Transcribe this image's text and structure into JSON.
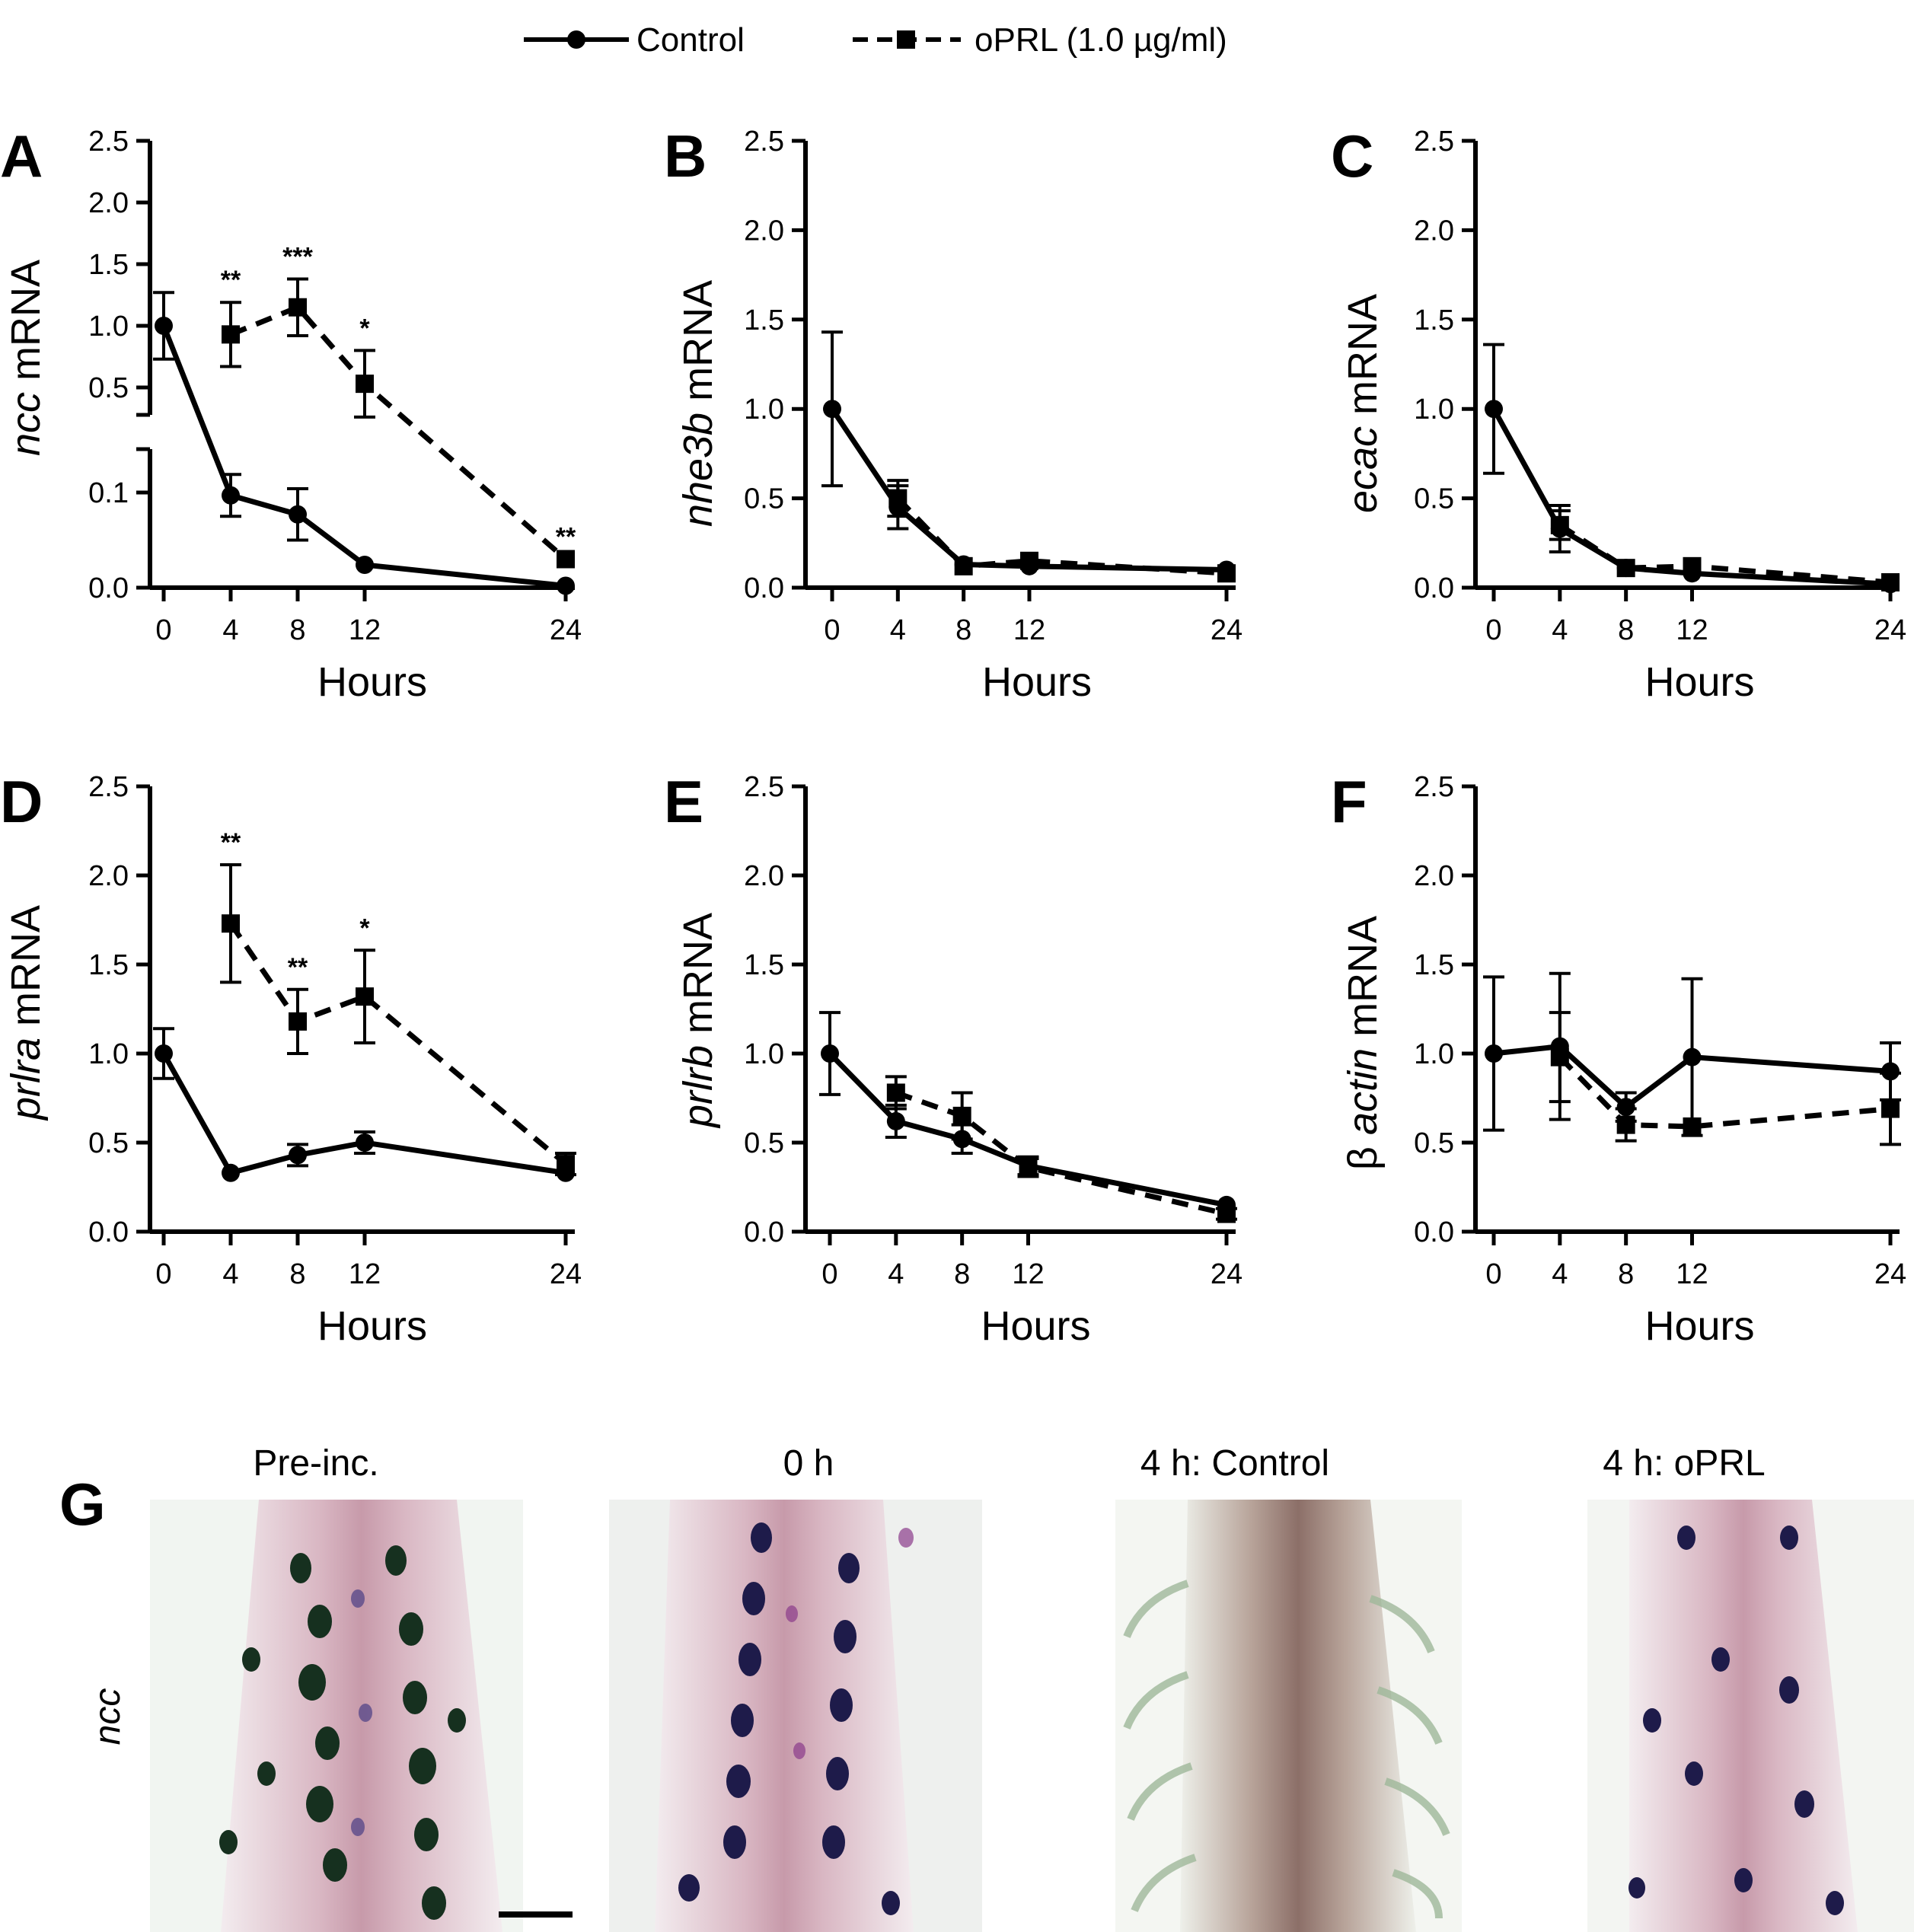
{
  "legend": {
    "control": "Control",
    "oprl": "oPRL (1.0 µg/ml)"
  },
  "colors": {
    "line": "#000000",
    "background": "#ffffff"
  },
  "chart_data": [
    {
      "panel": "A",
      "type": "line",
      "xlabel": "Hours",
      "ylabel_italic": "ncc",
      "ylabel_rest": " mRNA",
      "x": [
        0,
        4,
        8,
        12,
        24
      ],
      "broken_axis": true,
      "yticks_lower": [
        "0.0",
        "0.1"
      ],
      "yticks_upper": [
        "0.5",
        "1.0",
        "1.5",
        "2.0",
        "2.5"
      ],
      "series": [
        {
          "name": "Control",
          "values": [
            1.0,
            0.097,
            0.077,
            0.024,
            0.002
          ],
          "errors": [
            0.27,
            0.022,
            0.027,
            0.0,
            0.0
          ]
        },
        {
          "name": "oPRL (1.0 µg/ml)",
          "values": [
            null,
            0.93,
            1.15,
            0.53,
            0.03
          ],
          "errors": [
            null,
            0.26,
            0.23,
            0.27,
            0.0
          ]
        }
      ],
      "annotations": [
        {
          "x": 4,
          "text": "**"
        },
        {
          "x": 8,
          "text": "***"
        },
        {
          "x": 12,
          "text": "*"
        },
        {
          "x": 24,
          "text": "**"
        }
      ]
    },
    {
      "panel": "B",
      "type": "line",
      "xlabel": "Hours",
      "ylabel_italic": "nhe3b",
      "ylabel_rest": " mRNA",
      "x": [
        0,
        4,
        8,
        12,
        24
      ],
      "ylim": [
        0,
        2.5
      ],
      "yticks": [
        "0.0",
        "0.5",
        "1.0",
        "1.5",
        "2.0",
        "2.5"
      ],
      "series": [
        {
          "name": "Control",
          "values": [
            1.0,
            0.45,
            0.13,
            0.12,
            0.1
          ],
          "errors": [
            0.43,
            0.12,
            0.0,
            0.0,
            0.0
          ]
        },
        {
          "name": "oPRL (1.0 µg/ml)",
          "values": [
            null,
            0.5,
            0.12,
            0.15,
            0.08
          ],
          "errors": [
            null,
            0.1,
            0.0,
            0.0,
            0.0
          ]
        }
      ],
      "annotations": []
    },
    {
      "panel": "C",
      "type": "line",
      "xlabel": "Hours",
      "ylabel_italic": "ecac",
      "ylabel_rest": " mRNA",
      "x": [
        0,
        4,
        8,
        12,
        24
      ],
      "ylim": [
        0,
        2.5
      ],
      "yticks": [
        "0.0",
        "0.5",
        "1.0",
        "1.5",
        "2.0",
        "2.5"
      ],
      "series": [
        {
          "name": "Control",
          "values": [
            1.0,
            0.33,
            0.11,
            0.08,
            0.02
          ],
          "errors": [
            0.36,
            0.13,
            0.0,
            0.0,
            0.0
          ]
        },
        {
          "name": "oPRL (1.0 µg/ml)",
          "values": [
            null,
            0.35,
            0.11,
            0.12,
            0.03
          ],
          "errors": [
            null,
            0.08,
            0.0,
            0.0,
            0.0
          ]
        }
      ],
      "annotations": []
    },
    {
      "panel": "D",
      "type": "line",
      "xlabel": "Hours",
      "ylabel_italic": "prlra",
      "ylabel_rest": " mRNA",
      "x": [
        0,
        4,
        8,
        12,
        24
      ],
      "ylim": [
        0,
        2.5
      ],
      "yticks": [
        "0.0",
        "0.5",
        "1.0",
        "1.5",
        "2.0",
        "2.5"
      ],
      "series": [
        {
          "name": "Control",
          "values": [
            1.0,
            0.33,
            0.43,
            0.5,
            0.33
          ],
          "errors": [
            0.14,
            0.0,
            0.06,
            0.06,
            0.0
          ]
        },
        {
          "name": "oPRL (1.0 µg/ml)",
          "values": [
            null,
            1.73,
            1.18,
            1.32,
            0.38
          ],
          "errors": [
            null,
            0.33,
            0.18,
            0.26,
            0.06
          ]
        }
      ],
      "annotations": [
        {
          "x": 4,
          "text": "**"
        },
        {
          "x": 8,
          "text": "**"
        },
        {
          "x": 12,
          "text": "*"
        }
      ]
    },
    {
      "panel": "E",
      "type": "line",
      "xlabel": "Hours",
      "ylabel_italic": "prlrb",
      "ylabel_rest": " mRNA",
      "x": [
        0,
        4,
        8,
        12,
        24
      ],
      "ylim": [
        0,
        2.5
      ],
      "yticks": [
        "0.0",
        "0.5",
        "1.0",
        "1.5",
        "2.0",
        "2.5"
      ],
      "series": [
        {
          "name": "Control",
          "values": [
            1.0,
            0.62,
            0.52,
            0.37,
            0.15
          ],
          "errors": [
            0.23,
            0.09,
            0.08,
            0.05,
            0.0
          ]
        },
        {
          "name": "oPRL (1.0 µg/ml)",
          "values": [
            null,
            0.78,
            0.65,
            0.36,
            0.1
          ],
          "errors": [
            null,
            0.09,
            0.13,
            0.05,
            0.03
          ]
        }
      ],
      "annotations": []
    },
    {
      "panel": "F",
      "type": "line",
      "xlabel": "Hours",
      "ylabel_prefix": "β ",
      "ylabel_italic": "actin",
      "ylabel_rest": " mRNA",
      "x": [
        0,
        4,
        8,
        12,
        24
      ],
      "ylim": [
        0,
        2.5
      ],
      "yticks": [
        "0.0",
        "0.5",
        "1.0",
        "1.5",
        "2.0",
        "2.5"
      ],
      "series": [
        {
          "name": "Control",
          "values": [
            1.0,
            1.04,
            0.7,
            0.98,
            0.9
          ],
          "errors": [
            0.43,
            0.41,
            0.08,
            0.44,
            0.16
          ]
        },
        {
          "name": "oPRL (1.0 µg/ml)",
          "values": [
            null,
            0.98,
            0.6,
            0.59,
            0.69
          ],
          "errors": [
            null,
            0.25,
            0.09,
            0.0,
            0.2
          ]
        }
      ],
      "annotations": []
    }
  ],
  "panel_g": {
    "letter": "G",
    "row_label": "ncc",
    "columns": [
      "Pre-inc.",
      "0 h",
      "4 h: Control",
      "4 h: oPRL"
    ]
  }
}
